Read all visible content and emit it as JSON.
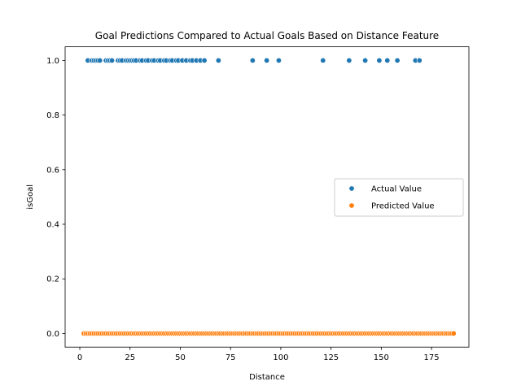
{
  "chart_data": {
    "type": "scatter",
    "title": "Goal Predictions Compared to Actual Goals Based on Distance Feature",
    "xlabel": "Distance",
    "ylabel": "isGoal",
    "xlim": [
      -7.3,
      193.6
    ],
    "ylim": [
      -0.05,
      1.05
    ],
    "xticks": [
      0,
      25,
      50,
      75,
      100,
      125,
      150,
      175
    ],
    "xtick_labels": [
      "0",
      "25",
      "50",
      "75",
      "100",
      "125",
      "150",
      "175"
    ],
    "yticks": [
      0.0,
      0.2,
      0.4,
      0.6,
      0.8,
      1.0
    ],
    "ytick_labels": [
      "0.0",
      "0.2",
      "0.4",
      "0.6",
      "0.8",
      "1.0"
    ],
    "grid": false,
    "legend_position": "center-right",
    "series": [
      {
        "name": "Actual Value",
        "color": "#1f77b4",
        "x": [
          4,
          6,
          7,
          8,
          9,
          10,
          13,
          14,
          15,
          16,
          19,
          20,
          21,
          23,
          24,
          25,
          26,
          27,
          28,
          30,
          31,
          33,
          34,
          36,
          37,
          39,
          40,
          42,
          43,
          45,
          46,
          48,
          49,
          51,
          53,
          55,
          56,
          58,
          60,
          62,
          69,
          86,
          93,
          99,
          121,
          134,
          142,
          149,
          153,
          158,
          167,
          169
        ],
        "y": [
          1,
          1,
          1,
          1,
          1,
          1,
          1,
          1,
          1,
          1,
          1,
          1,
          1,
          1,
          1,
          1,
          1,
          1,
          1,
          1,
          1,
          1,
          1,
          1,
          1,
          1,
          1,
          1,
          1,
          1,
          1,
          1,
          1,
          1,
          1,
          1,
          1,
          1,
          1,
          1,
          1,
          1,
          1,
          1,
          1,
          1,
          1,
          1,
          1,
          1,
          1,
          1
        ]
      },
      {
        "name": "Predicted Value",
        "color": "#ff7f0e",
        "x_range": [
          2,
          186
        ],
        "x_step": 1,
        "y_constant": 0
      }
    ]
  }
}
